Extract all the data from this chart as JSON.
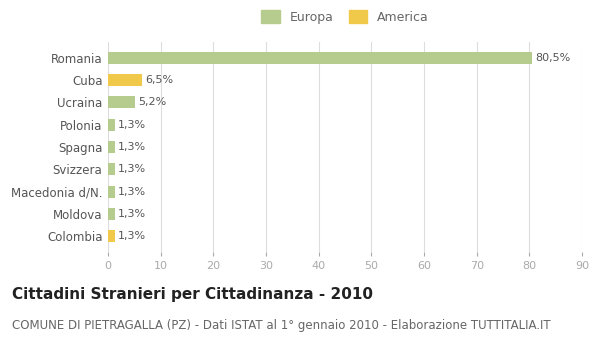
{
  "categories": [
    "Romania",
    "Cuba",
    "Ucraina",
    "Polonia",
    "Spagna",
    "Svizzera",
    "Macedonia d/N.",
    "Moldova",
    "Colombia"
  ],
  "values": [
    80.5,
    6.5,
    5.2,
    1.3,
    1.3,
    1.3,
    1.3,
    1.3,
    1.3
  ],
  "labels": [
    "80,5%",
    "6,5%",
    "5,2%",
    "1,3%",
    "1,3%",
    "1,3%",
    "1,3%",
    "1,3%",
    "1,3%"
  ],
  "colors": [
    "#b5cc8e",
    "#f0c84a",
    "#b5cc8e",
    "#b5cc8e",
    "#b5cc8e",
    "#b5cc8e",
    "#b5cc8e",
    "#b5cc8e",
    "#f0c84a"
  ],
  "europa_color": "#b5cc8e",
  "america_color": "#f0c84a",
  "title": "Cittadini Stranieri per Cittadinanza - 2010",
  "subtitle": "COMUNE DI PIETRAGALLA (PZ) - Dati ISTAT al 1° gennaio 2010 - Elaborazione TUTTITALIA.IT",
  "xlim": [
    0,
    90
  ],
  "xticks": [
    0,
    10,
    20,
    30,
    40,
    50,
    60,
    70,
    80,
    90
  ],
  "background_color": "#ffffff",
  "grid_color": "#dddddd",
  "bar_height": 0.55,
  "title_fontsize": 11,
  "subtitle_fontsize": 8.5,
  "label_fontsize": 8,
  "ytick_fontsize": 8.5,
  "xtick_fontsize": 8
}
